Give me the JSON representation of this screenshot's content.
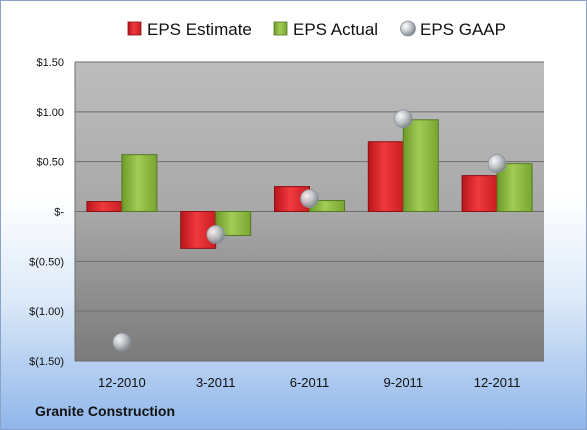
{
  "company": "Granite Construction",
  "chart_data": {
    "type": "bar",
    "categories": [
      "12-2010",
      "3-2011",
      "6-2011",
      "9-2011",
      "12-2011"
    ],
    "series": [
      {
        "name": "EPS Estimate",
        "kind": "bar",
        "color": "#e0262b",
        "values": [
          0.1,
          -0.37,
          0.25,
          0.7,
          0.36
        ]
      },
      {
        "name": "EPS Actual",
        "kind": "bar",
        "color": "#86b33c",
        "values": [
          0.57,
          -0.24,
          0.11,
          0.92,
          0.48
        ]
      },
      {
        "name": "EPS GAAP",
        "kind": "marker",
        "color": "#b9bec5",
        "values": [
          -1.31,
          -0.23,
          0.13,
          0.93,
          0.48
        ]
      }
    ],
    "y_ticks": [
      1.5,
      1.0,
      0.5,
      0,
      -0.5,
      -1.0,
      -1.5
    ],
    "y_tick_labels": [
      "$1.50",
      "$1.00",
      "$0.50",
      "$-",
      "$(0.50)",
      "$(1.00)",
      "$(1.50)"
    ],
    "ylim": [
      -1.5,
      1.5
    ],
    "grid": true,
    "legend_position": "top"
  }
}
